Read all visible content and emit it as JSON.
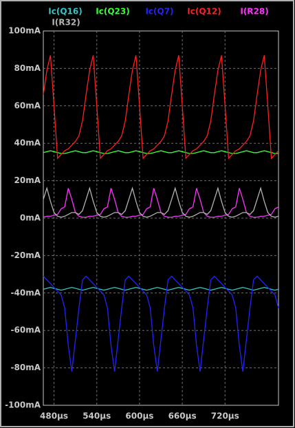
{
  "chart_data": {
    "type": "line",
    "x": [
      465,
      470,
      475,
      480,
      485,
      490,
      495,
      500,
      505,
      510,
      515,
      520,
      525,
      530,
      535,
      540,
      545,
      550,
      555,
      560,
      565,
      570,
      575,
      580,
      585,
      590,
      595,
      600,
      605,
      610,
      615,
      620,
      625,
      630,
      635,
      640,
      645,
      650,
      655,
      660,
      665,
      670,
      675,
      680,
      685,
      690,
      695,
      700,
      705,
      710,
      715,
      720,
      725,
      730,
      735,
      740,
      745,
      750,
      755,
      760,
      765,
      770,
      775,
      780,
      785,
      790,
      795
    ],
    "series": [
      {
        "name": "Ic(Q16)",
        "color": "#33c6c6",
        "values": [
          -38,
          -37.5,
          -37,
          -37.5,
          -38,
          -38.5,
          -38,
          -37.5,
          -37,
          -37.5,
          -38,
          -38.5,
          -38,
          -37.5,
          -37,
          -37.5,
          -38,
          -38.5,
          -38,
          -37.5,
          -37,
          -37.5,
          -38,
          -38.5,
          -38,
          -37.5,
          -37,
          -37.5,
          -38,
          -38.5,
          -38,
          -37.5,
          -37,
          -37.5,
          -38,
          -38.5,
          -38,
          -37.5,
          -37,
          -37.5,
          -38,
          -38.5,
          -38,
          -37.5,
          -37,
          -37.5,
          -38,
          -38.5,
          -38,
          -37.5,
          -37,
          -37.5,
          -38,
          -38.5,
          -38,
          -37.5,
          -37,
          -37.5,
          -38,
          -38.5,
          -38,
          -37.5,
          -37,
          -37.5,
          -38,
          -38.5,
          -38
        ]
      },
      {
        "name": "Ic(Q23)",
        "color": "#33ff33",
        "values": [
          35,
          35.5,
          36,
          35.5,
          35,
          34.5,
          34.5,
          35,
          35.5,
          36,
          35.5,
          35,
          35,
          35.5,
          36,
          35.5,
          35,
          34.5,
          34.5,
          35,
          35.5,
          36,
          35.5,
          35,
          35,
          35.5,
          36,
          35.5,
          35,
          34.5,
          34.5,
          35,
          35.5,
          36,
          35.5,
          35,
          35,
          35.5,
          36,
          35.5,
          35,
          34.5,
          34.5,
          35,
          35.5,
          36,
          35.5,
          35,
          35,
          35.5,
          36,
          35.5,
          35,
          34.5,
          34.5,
          35,
          35.5,
          36,
          35.5,
          35,
          35,
          35.5,
          36,
          35.5,
          35,
          34.5,
          34.5
        ]
      },
      {
        "name": "Ic(Q7)",
        "color": "#2323ff",
        "values": [
          -31,
          -33,
          -35,
          -37,
          -39,
          -41,
          -48,
          -68,
          -82,
          -65,
          -48,
          -33,
          -31,
          -33,
          -35,
          -37,
          -39,
          -41,
          -48,
          -68,
          -82,
          -65,
          -48,
          -33,
          -31,
          -33,
          -35,
          -37,
          -39,
          -41,
          -48,
          -68,
          -82,
          -65,
          -48,
          -33,
          -31,
          -33,
          -35,
          -37,
          -39,
          -41,
          -48,
          -68,
          -82,
          -65,
          -48,
          -33,
          -31,
          -33,
          -35,
          -37,
          -39,
          -41,
          -48,
          -68,
          -82,
          -65,
          -48,
          -33,
          -31,
          -33,
          -35,
          -37,
          -39,
          -41,
          -48
        ]
      },
      {
        "name": "Ic(Q12)",
        "color": "#ff2020",
        "values": [
          66,
          79,
          87,
          60,
          32,
          34,
          36,
          37,
          39,
          41,
          44,
          52,
          66,
          79,
          87,
          60,
          32,
          34,
          36,
          37,
          39,
          41,
          44,
          52,
          66,
          79,
          87,
          60,
          32,
          34,
          36,
          37,
          39,
          41,
          44,
          52,
          66,
          79,
          87,
          60,
          32,
          34,
          36,
          37,
          39,
          41,
          44,
          52,
          66,
          79,
          87,
          60,
          32,
          34,
          36,
          37,
          39,
          41,
          44,
          52,
          66,
          79,
          87,
          60,
          32,
          34,
          36
        ]
      },
      {
        "name": "I(R28)",
        "color": "#ff33ff",
        "values": [
          0.5,
          1,
          1,
          1.5,
          2,
          5,
          6,
          16,
          10,
          3,
          1,
          0.5,
          0.5,
          1,
          1,
          1.5,
          2,
          5,
          6,
          16,
          10,
          3,
          1,
          0.5,
          0.5,
          1,
          1,
          1.5,
          2,
          5,
          6,
          16,
          10,
          3,
          1,
          0.5,
          0.5,
          1,
          1,
          1.5,
          2,
          5,
          6,
          16,
          10,
          3,
          1,
          0.5,
          0.5,
          1,
          1,
          1.5,
          2,
          5,
          6,
          16,
          10,
          3,
          1,
          0.5,
          0.5,
          1,
          1,
          1.5,
          2,
          5,
          6
        ]
      },
      {
        "name": "I(R32)",
        "color": "#b4b4b4",
        "values": [
          10,
          16,
          9,
          3,
          1,
          0.5,
          1,
          2,
          3,
          3,
          2,
          4,
          10,
          16,
          9,
          3,
          1,
          0.5,
          1,
          2,
          3,
          3,
          2,
          4,
          10,
          16,
          9,
          3,
          1,
          0.5,
          1,
          2,
          3,
          3,
          2,
          4,
          10,
          16,
          9,
          3,
          1,
          0.5,
          1,
          2,
          3,
          3,
          2,
          4,
          10,
          16,
          9,
          3,
          1,
          0.5,
          1,
          2,
          3,
          3,
          2,
          4,
          10,
          16,
          9,
          3,
          1,
          0.5,
          1
        ]
      }
    ],
    "xlim": [
      465,
      795
    ],
    "xticks": [
      {
        "value": 480,
        "label": "480µs"
      },
      {
        "value": 540,
        "label": "540µs"
      },
      {
        "value": 600,
        "label": "600µs"
      },
      {
        "value": 660,
        "label": "660µs"
      },
      {
        "value": 720,
        "label": "720µs"
      }
    ],
    "ylim": [
      -100,
      100
    ],
    "yticks": [
      {
        "value": 100,
        "label": "100mA"
      },
      {
        "value": 80,
        "label": "80mA"
      },
      {
        "value": 60,
        "label": "60mA"
      },
      {
        "value": 40,
        "label": "40mA"
      },
      {
        "value": 20,
        "label": "20mA"
      },
      {
        "value": 0,
        "label": "0mA"
      },
      {
        "value": -20,
        "label": "-20mA"
      },
      {
        "value": -40,
        "label": "-40mA"
      },
      {
        "value": -60,
        "label": "-60mA"
      },
      {
        "value": -80,
        "label": "-80mA"
      },
      {
        "value": -100,
        "label": "-100mA"
      }
    ],
    "grid": true
  }
}
